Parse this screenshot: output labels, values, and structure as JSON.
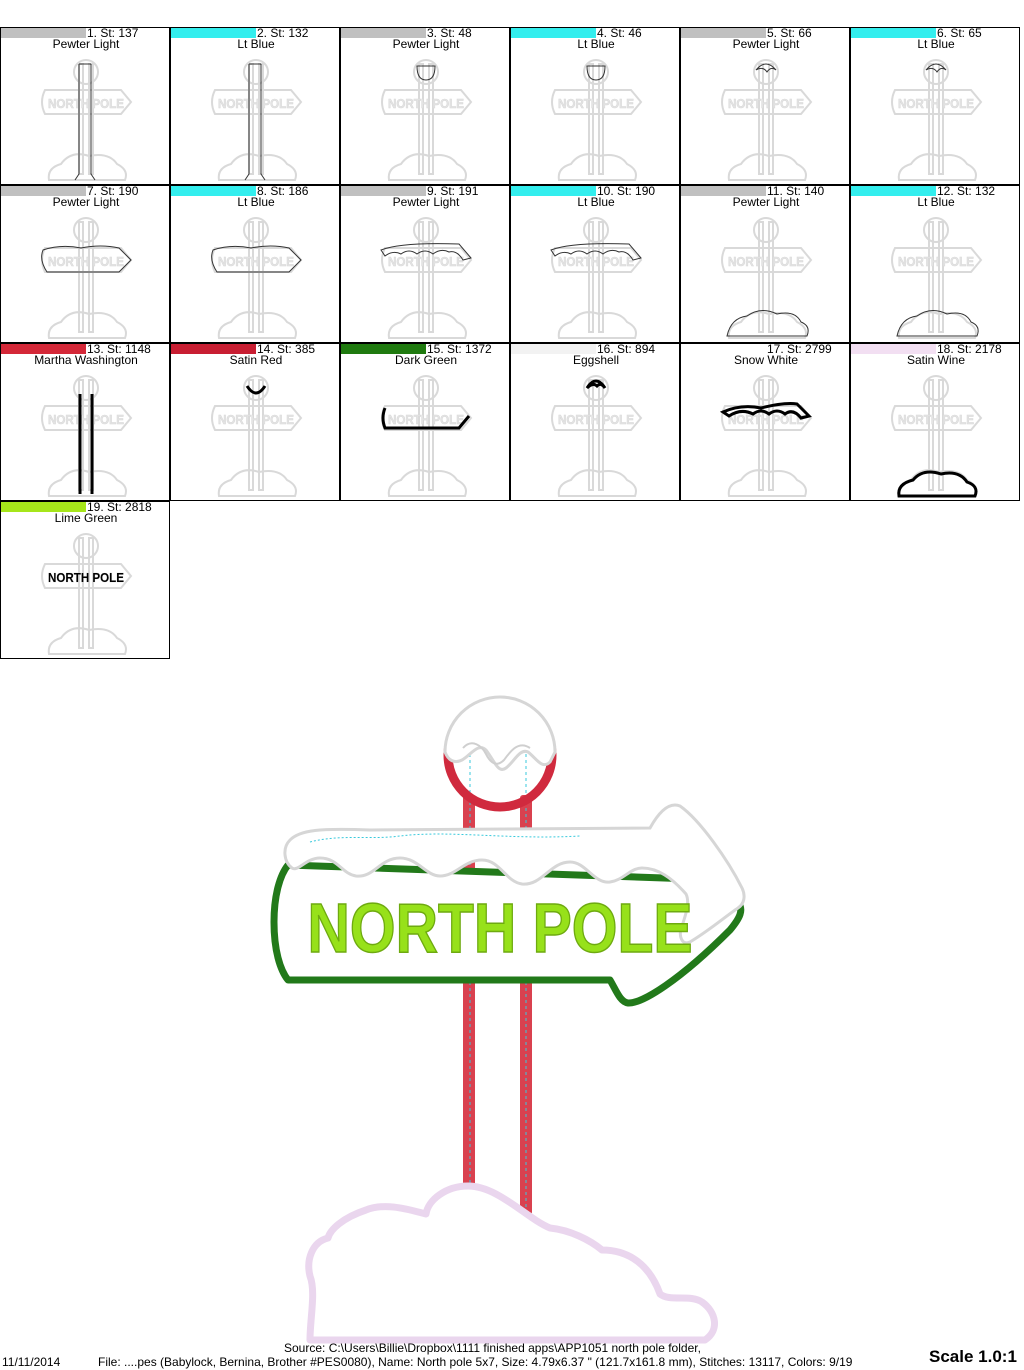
{
  "steps": [
    {
      "index": "1",
      "stitches": "137",
      "color_name": "Pewter Light",
      "swatch": "#c0c0c0",
      "thumb": "pole-outline"
    },
    {
      "index": "2",
      "stitches": "132",
      "color_name": "Lt Blue",
      "swatch": "#33eeee",
      "thumb": "pole-outline"
    },
    {
      "index": "3",
      "stitches": "48",
      "color_name": "Pewter Light",
      "swatch": "#c0c0c0",
      "thumb": "circle-outline"
    },
    {
      "index": "4",
      "stitches": "46",
      "color_name": "Lt Blue",
      "swatch": "#33eeee",
      "thumb": "circle-outline"
    },
    {
      "index": "5",
      "stitches": "66",
      "color_name": "Pewter Light",
      "swatch": "#c0c0c0",
      "thumb": "snowcap-outline"
    },
    {
      "index": "6",
      "stitches": "65",
      "color_name": "Lt Blue",
      "swatch": "#33eeee",
      "thumb": "snowcap-outline"
    },
    {
      "index": "7",
      "stitches": "190",
      "color_name": "Pewter Light",
      "swatch": "#c0c0c0",
      "thumb": "arrow-outline"
    },
    {
      "index": "8",
      "stitches": "186",
      "color_name": "Lt Blue",
      "swatch": "#33eeee",
      "thumb": "arrow-outline"
    },
    {
      "index": "9",
      "stitches": "191",
      "color_name": "Pewter Light",
      "swatch": "#c0c0c0",
      "thumb": "snow-arrow-outline"
    },
    {
      "index": "10",
      "stitches": "190",
      "color_name": "Lt Blue",
      "swatch": "#33eeee",
      "thumb": "snow-arrow-outline"
    },
    {
      "index": "11",
      "stitches": "140",
      "color_name": "Pewter Light",
      "swatch": "#c0c0c0",
      "thumb": "cloud-outline"
    },
    {
      "index": "12",
      "stitches": "132",
      "color_name": "Lt Blue",
      "swatch": "#33eeee",
      "thumb": "cloud-outline"
    },
    {
      "index": "13",
      "stitches": "1148",
      "color_name": "Martha Washington",
      "swatch": "#d42838",
      "thumb": "pole-fill"
    },
    {
      "index": "14",
      "stitches": "385",
      "color_name": "Satin Red",
      "swatch": "#c81e32",
      "thumb": "ring-fill"
    },
    {
      "index": "15",
      "stitches": "1372",
      "color_name": "Dark Green",
      "swatch": "#1f7a0f",
      "thumb": "arrow-fill"
    },
    {
      "index": "16",
      "stitches": "894",
      "color_name": "Eggshell",
      "swatch": "#f2f2f2",
      "thumb": "snowcap-fill"
    },
    {
      "index": "17",
      "stitches": "2799",
      "color_name": "Snow White",
      "swatch": "#ffffff",
      "thumb": "snow-arrow-fill"
    },
    {
      "index": "18",
      "stitches": "2178",
      "color_name": "Satin Wine",
      "swatch": "#f2dff2",
      "thumb": "cloud-fill"
    },
    {
      "index": "19",
      "stitches": "2818",
      "color_name": "Lime Green",
      "swatch": "#a6e61a",
      "thumb": "text-fill"
    }
  ],
  "thumb_sign_text": "NORTH POLE",
  "design": {
    "sign_text": "NORTH POLE",
    "colors": {
      "pole": "#d9414f",
      "ring": "#d02a3e",
      "green": "#22791a",
      "lime": "#97e11a",
      "snow": "#ffffff",
      "snow_edge": "#d6d6d6",
      "cloud": "#ead6ee",
      "guide": "#38c9dc"
    }
  },
  "footer": {
    "source": "Source: C:\\Users\\Billie\\Dropbox\\1111 finished apps\\APP1051 north pole folder,",
    "date": "11/11/2014",
    "file_info": "File: ....pes (Babylock, Bernina, Brother #PES0080), Name: North pole 5x7, Size: 4.79x6.37 \" (121.7x161.8 mm), Stitches: 13117, Colors: 9/19",
    "scale": "Scale 1.0:1"
  }
}
